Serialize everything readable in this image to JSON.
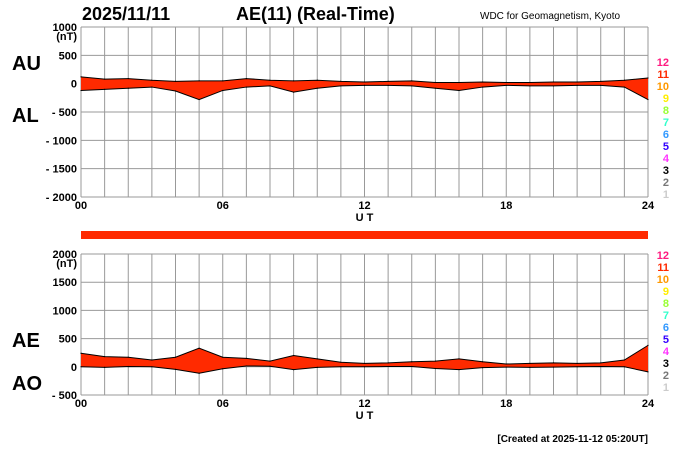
{
  "header": {
    "date": "2025/11/11",
    "title": "AE(11) (Real-Time)",
    "source": "WDC for Geomagnetism, Kyoto"
  },
  "footer": {
    "created": "[Created at 2025-11-12 05:20UT]"
  },
  "legend": {
    "items": [
      {
        "label": "12",
        "color": "#ff1a80"
      },
      {
        "label": "11",
        "color": "#ff2a00"
      },
      {
        "label": "10",
        "color": "#ff9900"
      },
      {
        "label": "9",
        "color": "#ffee00"
      },
      {
        "label": "8",
        "color": "#99ff33"
      },
      {
        "label": "7",
        "color": "#33ffcc"
      },
      {
        "label": "6",
        "color": "#3399ff"
      },
      {
        "label": "5",
        "color": "#3300ff"
      },
      {
        "label": "4",
        "color": "#ff33ff"
      },
      {
        "label": "3",
        "color": "#000000"
      },
      {
        "label": "2",
        "color": "#777777"
      },
      {
        "label": "1",
        "color": "#cccccc"
      }
    ]
  },
  "colors": {
    "fill": "#ff2a00",
    "outline": "#000000",
    "grid": "#999999",
    "status_bar": "#ff2a00"
  },
  "chart_data": [
    {
      "type": "area",
      "panel": "AU/AL",
      "unit_label": "(nT)",
      "labels": {
        "upper": "AU",
        "lower": "AL"
      },
      "xlabel": "U T",
      "ylim": [
        -2000,
        1000
      ],
      "yticks": [
        1000,
        500,
        0,
        -500,
        -1000,
        -1500,
        -2000
      ],
      "ytick_labels": [
        "1000",
        "500",
        "0",
        "- 500",
        "- 1000",
        "- 1500",
        "- 2000"
      ],
      "xlim": [
        0,
        24
      ],
      "xticks": [
        0,
        6,
        12,
        18,
        24
      ],
      "xtick_labels": [
        "00",
        "06",
        "12",
        "18",
        "24"
      ],
      "grid": true,
      "x": [
        0,
        1,
        2,
        3,
        4,
        5,
        6,
        7,
        8,
        9,
        10,
        11,
        12,
        13,
        14,
        15,
        16,
        17,
        18,
        19,
        20,
        21,
        22,
        23,
        24
      ],
      "series": [
        {
          "name": "AU",
          "values": [
            120,
            80,
            90,
            60,
            40,
            50,
            50,
            90,
            60,
            50,
            60,
            40,
            30,
            40,
            50,
            20,
            20,
            30,
            20,
            20,
            30,
            30,
            40,
            60,
            100
          ]
        },
        {
          "name": "AL",
          "values": [
            -120,
            -100,
            -80,
            -60,
            -130,
            -280,
            -120,
            -60,
            -40,
            -150,
            -80,
            -40,
            -30,
            -30,
            -40,
            -80,
            -120,
            -60,
            -30,
            -40,
            -40,
            -30,
            -30,
            -60,
            -280
          ]
        }
      ]
    },
    {
      "type": "area",
      "panel": "AE/AO",
      "unit_label": "(nT)",
      "labels": {
        "upper": "AE",
        "lower": "AO"
      },
      "xlabel": "U T",
      "ylim": [
        -500,
        2000
      ],
      "yticks": [
        2000,
        1500,
        1000,
        500,
        0,
        -500
      ],
      "ytick_labels": [
        "2000",
        "1500",
        "1000",
        "500",
        "0",
        "- 500"
      ],
      "xlim": [
        0,
        24
      ],
      "xticks": [
        0,
        6,
        12,
        18,
        24
      ],
      "xtick_labels": [
        "00",
        "06",
        "12",
        "18",
        "24"
      ],
      "grid": true,
      "x": [
        0,
        1,
        2,
        3,
        4,
        5,
        6,
        7,
        8,
        9,
        10,
        11,
        12,
        13,
        14,
        15,
        16,
        17,
        18,
        19,
        20,
        21,
        22,
        23,
        24
      ],
      "series": [
        {
          "name": "AE",
          "values": [
            240,
            180,
            170,
            120,
            170,
            330,
            170,
            150,
            100,
            200,
            140,
            80,
            60,
            70,
            90,
            100,
            140,
            90,
            50,
            60,
            70,
            60,
            70,
            120,
            380
          ]
        },
        {
          "name": "AO",
          "values": [
            0,
            -10,
            5,
            0,
            -45,
            -115,
            -35,
            15,
            10,
            -50,
            -10,
            0,
            0,
            5,
            5,
            -30,
            -50,
            -15,
            -5,
            -10,
            -5,
            0,
            5,
            0,
            -90
          ]
        }
      ]
    }
  ]
}
